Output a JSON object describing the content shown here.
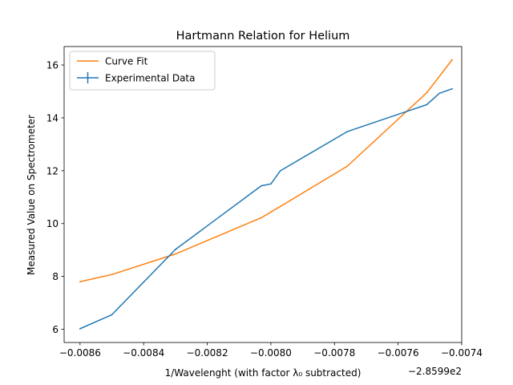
{
  "chart_data": {
    "type": "line",
    "title": "Hartmann Relation for Helium",
    "xlabel": "1/Wavelenght (with factor λ₀ subtracted)",
    "ylabel": "Measured Value on Spectrometer",
    "x_offset_label": "−2.8599e2",
    "xlim": [
      -0.00865,
      -0.0074
    ],
    "ylim": [
      5.5,
      16.7
    ],
    "xticks": [
      -0.0086,
      -0.0084,
      -0.0082,
      -0.008,
      -0.0078,
      -0.0076,
      -0.0074
    ],
    "xtick_labels": [
      "−0.0086",
      "−0.0084",
      "−0.0082",
      "−0.0080",
      "−0.0078",
      "−0.0076",
      "−0.0074"
    ],
    "yticks": [
      6,
      8,
      10,
      12,
      14,
      16
    ],
    "ytick_labels": [
      "6",
      "8",
      "10",
      "12",
      "14",
      "16"
    ],
    "grid": false,
    "legend_position": "top-left",
    "series": [
      {
        "name": "Curve Fit",
        "color": "#ff7f0e",
        "marker": "line",
        "x": [
          -0.0086,
          -0.0085,
          -0.0083,
          -0.00803,
          -0.00797,
          -0.00776,
          -0.00751,
          -0.00743
        ],
        "y": [
          7.8,
          8.07,
          8.85,
          10.22,
          10.65,
          12.17,
          14.95,
          16.2
        ]
      },
      {
        "name": "Experimental Data",
        "color": "#1f77b4",
        "marker": "errorbar",
        "x": [
          -0.0086,
          -0.0085,
          -0.0083,
          -0.00803,
          -0.008,
          -0.00797,
          -0.00776,
          -0.00751,
          -0.00747,
          -0.00743
        ],
        "y": [
          6.02,
          6.55,
          9.02,
          11.43,
          11.5,
          12.0,
          13.48,
          14.5,
          14.93,
          15.1
        ]
      }
    ]
  }
}
